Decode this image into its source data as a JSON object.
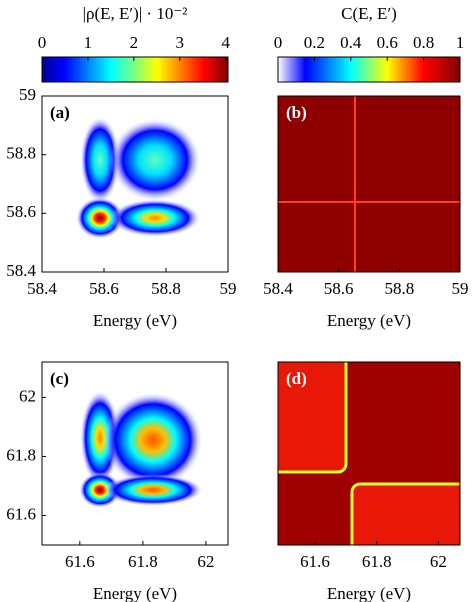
{
  "chart_data": [
    {
      "type": "heatmap",
      "label": "(a)",
      "xlabel": "Energy (eV)",
      "xlim": [
        58.4,
        59
      ],
      "xticks": [
        58.4,
        58.6,
        58.8,
        59
      ],
      "ylim": [
        58.4,
        59
      ],
      "yticks": [
        58.4,
        58.6,
        58.8,
        59
      ],
      "colorbar": {
        "title": "|ρ(E, E′)| · 10⁻²",
        "lim": [
          0,
          4.05
        ],
        "ticks": [
          0,
          1,
          2,
          3,
          4
        ]
      }
    },
    {
      "type": "heatmap",
      "label": "(b)",
      "xlabel": "Energy (eV)",
      "xlim": [
        58.4,
        59
      ],
      "xticks": [
        58.4,
        58.6,
        58.8,
        59
      ],
      "colorbar": {
        "title": "C(E, E′)",
        "lim": [
          0,
          1
        ],
        "ticks": [
          0,
          0.2,
          0.4,
          0.6,
          0.8,
          1
        ]
      }
    },
    {
      "type": "heatmap",
      "label": "(c)",
      "xlabel": "Energy (eV)",
      "xlim": [
        61.48,
        62.07
      ],
      "xticks": [
        61.6,
        61.8,
        62
      ],
      "ylim": [
        61.5,
        62.12
      ],
      "yticks": [
        61.6,
        61.8,
        62
      ]
    },
    {
      "type": "heatmap",
      "label": "(d)",
      "xlabel": "Energy (eV)",
      "xlim": [
        61.48,
        62.07
      ],
      "xticks": [
        61.6,
        61.8,
        62
      ]
    }
  ]
}
